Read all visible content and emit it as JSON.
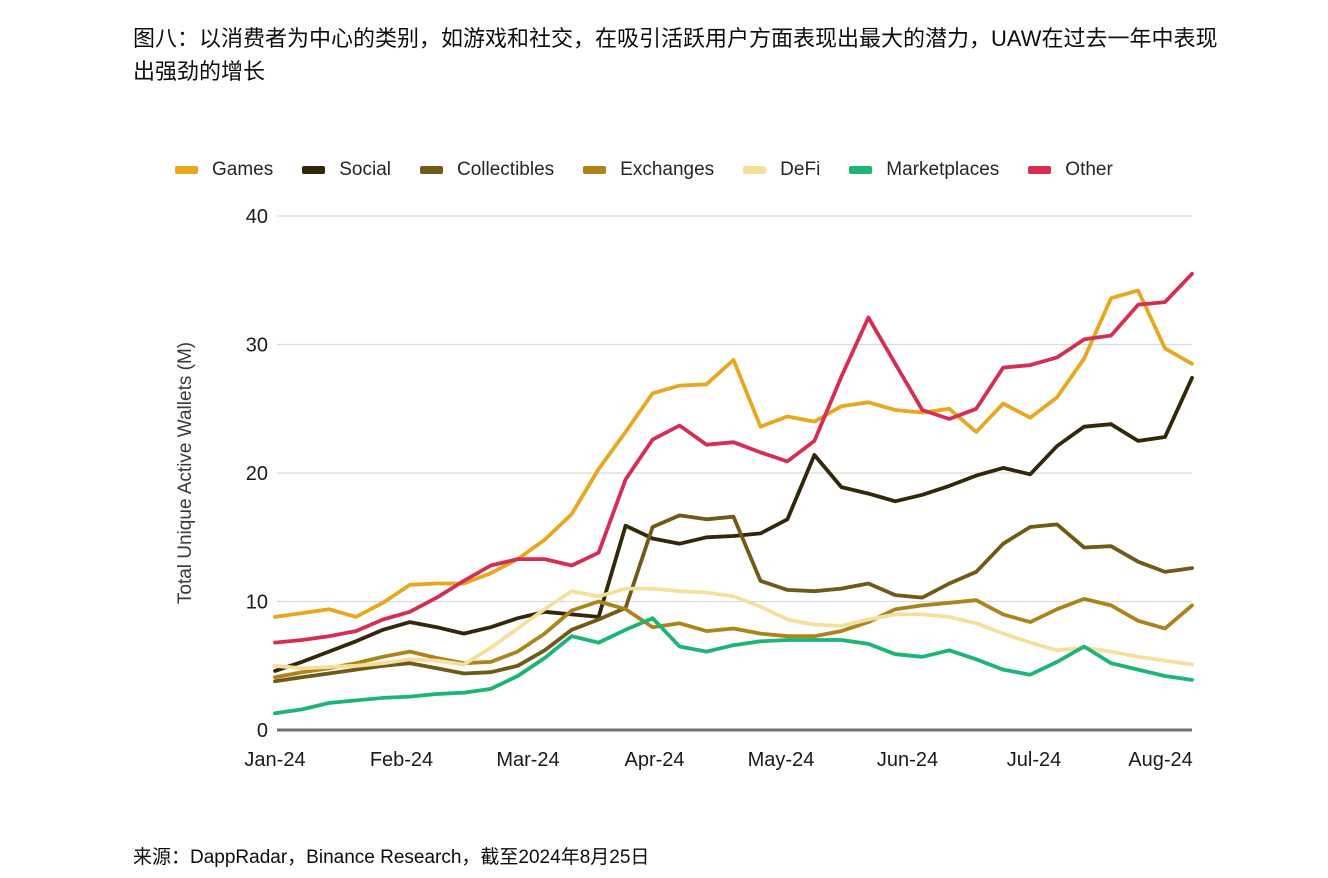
{
  "title": "图八：以消费者为中心的类别，如游戏和社交，在吸引活跃用户方面表现出最大的潜力，UAW在过去一年中表现出强劲的增长",
  "source": "来源：DappRadar，Binance Research，截至2024年8月25日",
  "chart_data": {
    "type": "line",
    "title": "",
    "xlabel": "",
    "ylabel": "Total Unique Active Wallets (M)",
    "ylim": [
      0,
      40
    ],
    "yticks": [
      0,
      10,
      20,
      30,
      40
    ],
    "x_tick_labels": [
      "Jan-24",
      "Feb-24",
      "Mar-24",
      "Apr-24",
      "May-24",
      "Jun-24",
      "Jul-24",
      "Aug-24"
    ],
    "grid": "horizontal",
    "legend_position": "top",
    "point_frequency": "weekly",
    "series": [
      {
        "name": "Games",
        "color": "#E8A71E",
        "values": [
          8.8,
          9.1,
          9.4,
          8.8,
          9.9,
          11.3,
          11.4,
          11.4,
          12.2,
          13.3,
          14.8,
          16.8,
          20.3,
          23.2,
          26.2,
          26.8,
          26.9,
          28.8,
          23.6,
          24.4,
          24.0,
          25.2,
          25.5,
          24.9,
          24.7,
          25.0,
          23.2,
          25.4,
          24.3,
          25.9,
          28.9,
          33.6,
          34.2,
          29.7,
          28.5
        ]
      },
      {
        "name": "Social",
        "color": "#33270B",
        "values": [
          4.6,
          5.3,
          6.1,
          6.9,
          7.8,
          8.4,
          8.0,
          7.5,
          8.0,
          8.7,
          9.2,
          9.0,
          8.8,
          15.9,
          14.9,
          14.5,
          15.0,
          15.1,
          15.3,
          16.4,
          21.4,
          18.9,
          18.4,
          17.8,
          18.3,
          19.0,
          19.8,
          20.4,
          19.9,
          22.1,
          23.6,
          23.8,
          22.5,
          22.8,
          27.4
        ]
      },
      {
        "name": "Collectibles",
        "color": "#6F5A17",
        "values": [
          3.8,
          4.1,
          4.4,
          4.7,
          5.0,
          5.2,
          4.8,
          4.4,
          4.5,
          5.0,
          6.2,
          7.8,
          8.6,
          9.5,
          15.8,
          16.7,
          16.4,
          16.6,
          11.6,
          10.9,
          10.8,
          11.0,
          11.4,
          10.5,
          10.3,
          11.4,
          12.3,
          14.5,
          15.8,
          16.0,
          14.2,
          14.3,
          13.1,
          12.3,
          12.6
        ]
      },
      {
        "name": "Exchanges",
        "color": "#AD831C",
        "values": [
          4.1,
          4.5,
          4.8,
          5.2,
          5.7,
          6.1,
          5.6,
          5.2,
          5.3,
          6.1,
          7.5,
          9.3,
          10.0,
          9.4,
          8.0,
          8.3,
          7.7,
          7.9,
          7.5,
          7.3,
          7.3,
          7.7,
          8.4,
          9.4,
          9.7,
          9.9,
          10.1,
          9.0,
          8.4,
          9.4,
          10.2,
          9.7,
          8.5,
          7.9,
          9.7
        ]
      },
      {
        "name": "DeFi",
        "color": "#F6DF9D",
        "values": [
          5.0,
          4.8,
          4.9,
          5.0,
          5.2,
          5.5,
          5.4,
          5.1,
          6.4,
          7.9,
          9.4,
          10.8,
          10.4,
          11.0,
          11.0,
          10.8,
          10.7,
          10.4,
          9.6,
          8.6,
          8.2,
          8.1,
          8.6,
          9.0,
          9.0,
          8.8,
          8.3,
          7.5,
          6.8,
          6.2,
          6.4,
          6.1,
          5.7,
          5.4,
          5.1
        ]
      },
      {
        "name": "Marketplaces",
        "color": "#1CB576",
        "values": [
          1.3,
          1.6,
          2.1,
          2.3,
          2.5,
          2.6,
          2.8,
          2.9,
          3.2,
          4.2,
          5.6,
          7.3,
          6.8,
          7.8,
          8.7,
          6.5,
          6.1,
          6.6,
          6.9,
          7.0,
          7.0,
          7.0,
          6.7,
          5.9,
          5.7,
          6.2,
          5.5,
          4.7,
          4.3,
          5.3,
          6.5,
          5.2,
          4.7,
          4.2,
          3.9
        ]
      },
      {
        "name": "Other",
        "color": "#D62E53",
        "values": [
          6.8,
          7.0,
          7.3,
          7.7,
          8.6,
          9.2,
          10.3,
          11.6,
          12.8,
          13.3,
          13.3,
          12.8,
          13.8,
          19.5,
          22.6,
          23.7,
          22.2,
          22.4,
          21.6,
          20.9,
          22.5,
          27.5,
          32.1,
          28.5,
          24.9,
          24.2,
          25.0,
          28.2,
          28.4,
          29.0,
          30.4,
          30.7,
          33.1,
          33.3,
          35.5
        ]
      }
    ]
  }
}
